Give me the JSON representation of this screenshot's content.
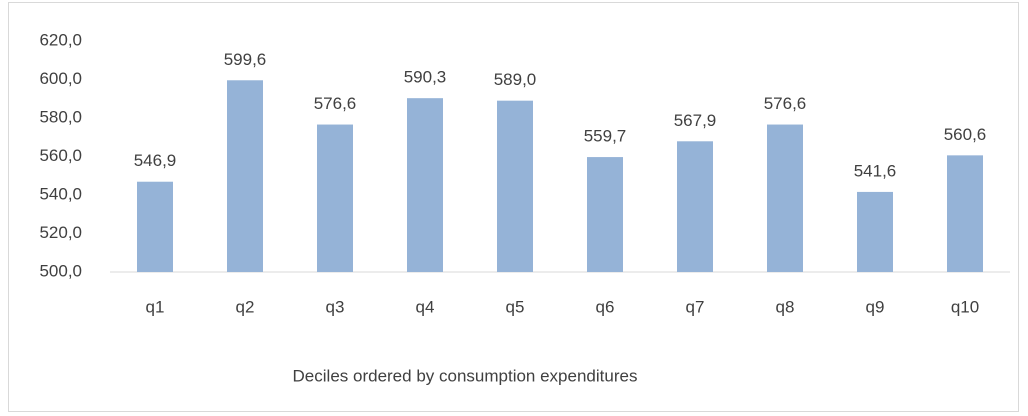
{
  "chart_data": {
    "type": "bar",
    "x_label": "Deciles ordered by consumption expenditures",
    "categories": [
      "q1",
      "q2",
      "q3",
      "q4",
      "q5",
      "q6",
      "q7",
      "q8",
      "q9",
      "q10"
    ],
    "values": [
      546.9,
      599.6,
      576.6,
      590.3,
      589.0,
      559.7,
      567.9,
      576.6,
      541.6,
      560.6
    ],
    "value_labels": [
      "546,9",
      "599,6",
      "576,6",
      "590,3",
      "589,0",
      "559,7",
      "567,9",
      "576,6",
      "541,6",
      "560,6"
    ],
    "color": "#95b3d7",
    "ylim": [
      500,
      620
    ],
    "yticks": [
      {
        "value": 500,
        "label": "500,0"
      },
      {
        "value": 520,
        "label": "520,0"
      },
      {
        "value": 540,
        "label": "540,0"
      },
      {
        "value": 560,
        "label": "560,0"
      },
      {
        "value": 580,
        "label": "580,0"
      },
      {
        "value": 600,
        "label": "600,0"
      },
      {
        "value": 620,
        "label": "620,0"
      }
    ],
    "grid": false
  }
}
